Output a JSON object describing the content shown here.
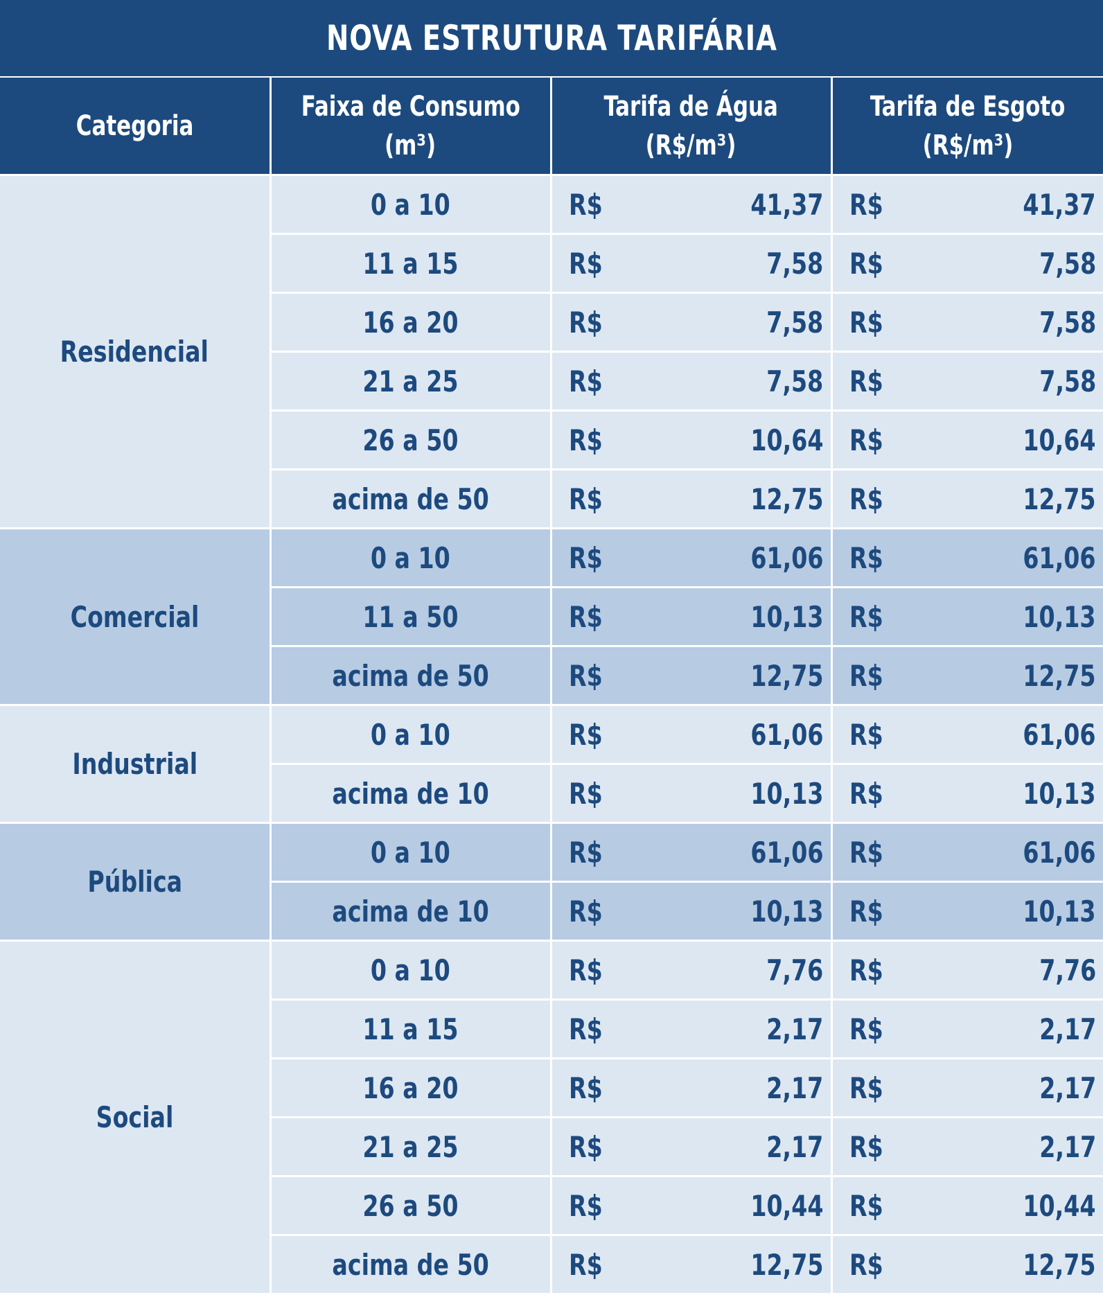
{
  "title": "NOVA ESTRUTURA TARIFÁRIA",
  "headers": {
    "category": "Categoria",
    "range_line1": "Faixa de Consumo",
    "range_line2": "(m³)",
    "water_line1": "Tarifa de Água",
    "water_line2": "(R$/m³)",
    "sewer_line1": "Tarifa de Esgoto",
    "sewer_line2": "(R$/m³)"
  },
  "currency": "R$",
  "groups": [
    {
      "category": "Residencial",
      "rows": [
        {
          "range": "0 a 10",
          "water": "41,37",
          "sewer": "41,37"
        },
        {
          "range": "11 a 15",
          "water": "7,58",
          "sewer": "7,58"
        },
        {
          "range": "16 a 20",
          "water": "7,58",
          "sewer": "7,58"
        },
        {
          "range": "21 a 25",
          "water": "7,58",
          "sewer": "7,58"
        },
        {
          "range": "26 a 50",
          "water": "10,64",
          "sewer": "10,64"
        },
        {
          "range": "acima de 50",
          "water": "12,75",
          "sewer": "12,75"
        }
      ]
    },
    {
      "category": "Comercial",
      "rows": [
        {
          "range": "0 a 10",
          "water": "61,06",
          "sewer": "61,06"
        },
        {
          "range": "11 a 50",
          "water": "10,13",
          "sewer": "10,13"
        },
        {
          "range": "acima de 50",
          "water": "12,75",
          "sewer": "12,75"
        }
      ]
    },
    {
      "category": "Industrial",
      "rows": [
        {
          "range": "0 a 10",
          "water": "61,06",
          "sewer": "61,06"
        },
        {
          "range": "acima de 10",
          "water": "10,13",
          "sewer": "10,13"
        }
      ]
    },
    {
      "category": "Pública",
      "rows": [
        {
          "range": "0 a 10",
          "water": "61,06",
          "sewer": "61,06"
        },
        {
          "range": "acima de 10",
          "water": "10,13",
          "sewer": "10,13"
        }
      ]
    },
    {
      "category": "Social",
      "rows": [
        {
          "range": "0 a 10",
          "water": "7,76",
          "sewer": "7,76"
        },
        {
          "range": "11 a 15",
          "water": "2,17",
          "sewer": "2,17"
        },
        {
          "range": "16 a 20",
          "water": "2,17",
          "sewer": "2,17"
        },
        {
          "range": "21 a 25",
          "water": "2,17",
          "sewer": "2,17"
        },
        {
          "range": "26 a 50",
          "water": "10,44",
          "sewer": "10,44"
        },
        {
          "range": "acima de 50",
          "water": "12,75",
          "sewer": "12,75"
        }
      ]
    }
  ],
  "colors": {
    "header_bg": "#1d4a7e",
    "light_row_bg": "#dde7f2",
    "dark_row_bg": "#b7cbe3",
    "text": "#1d4a7e"
  }
}
